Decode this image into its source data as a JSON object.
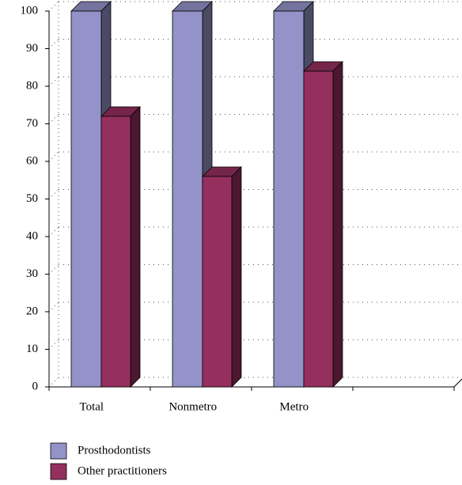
{
  "chart_data": {
    "type": "bar3d",
    "categories": [
      "Total",
      "Nonmetro",
      "Metro",
      null
    ],
    "series": [
      {
        "name": "Prosthodontists",
        "color": "#9393c9",
        "values": [
          100,
          100,
          100,
          null
        ]
      },
      {
        "name": "Other practitioners",
        "color": "#95305e",
        "values": [
          72,
          56,
          84,
          null
        ]
      }
    ],
    "ylim": [
      0,
      100
    ],
    "yticks": [
      0,
      10,
      20,
      30,
      40,
      50,
      60,
      70,
      80,
      90,
      100
    ],
    "grid": true
  }
}
